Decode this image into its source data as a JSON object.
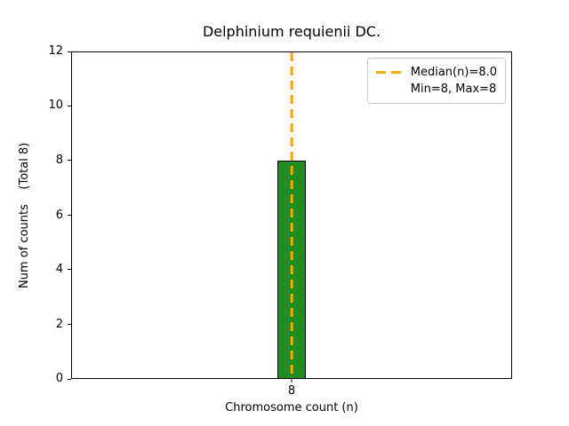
{
  "chart_data": {
    "type": "bar",
    "title": "Delphinium requienii DC.",
    "xlabel": "Chromosome count (n)",
    "ylabel": "Num of counts    (Total 8)",
    "categories": [
      "8"
    ],
    "values": [
      8
    ],
    "total_counts": 8,
    "ylim": [
      0,
      12
    ],
    "yticks": [
      0,
      2,
      4,
      6,
      8,
      10,
      12
    ],
    "grid": false,
    "bar_color": "#228B22",
    "bar_edge_color": "#000000",
    "median_line": {
      "value": 8.0,
      "color": "#FFA500",
      "style": "dashed"
    },
    "legend_position": "upper right",
    "legend": [
      {
        "label": "Median(n)=8.0",
        "marker": "dashed-line",
        "color": "#FFA500"
      },
      {
        "label": "Min=8, Max=8",
        "marker": "none"
      }
    ]
  }
}
